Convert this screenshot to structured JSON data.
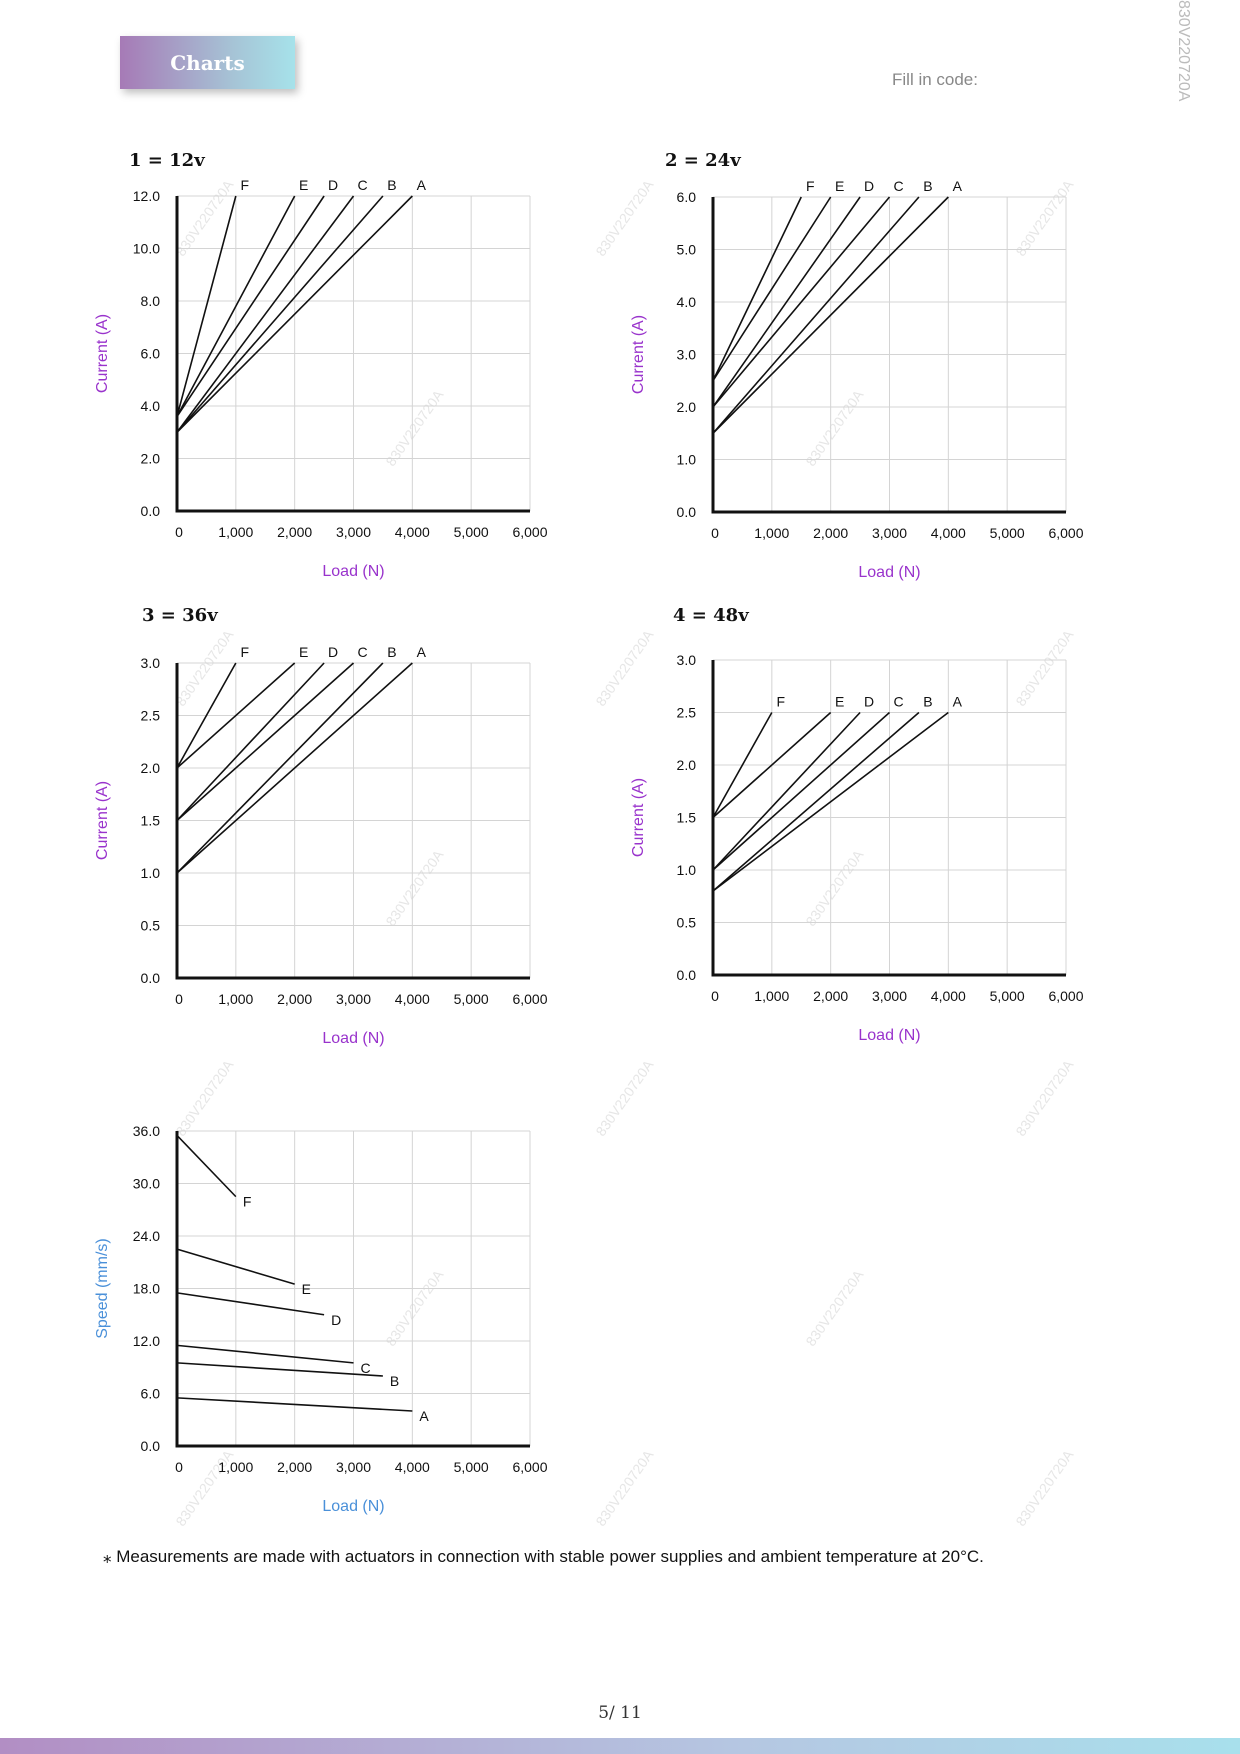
{
  "header": {
    "badge": "Charts",
    "fill_in_code": "Fill in code:",
    "side_code": "830V220720A"
  },
  "watermark_text": "830V220720A",
  "footnote": "⁎ Measurements are made with actuators in connection with stable power supplies and ambient temperature at 20°C.",
  "page_number": "5∕ 11",
  "colors": {
    "current_axis_label": "#9933cc",
    "speed_axis_label": "#4a90d9",
    "line": "#111111",
    "grid": "#d4d4d4"
  },
  "chart_data": [
    {
      "type": "line",
      "title": "1 = 12v",
      "xlabel": "Load (N)",
      "ylabel": "Current (A)",
      "xlim": [
        0,
        6000
      ],
      "ylim": [
        0,
        12
      ],
      "x_ticks": [
        "0",
        "1,000",
        "2,000",
        "3,000",
        "4,000",
        "5,000",
        "6,000"
      ],
      "y_ticks": [
        "0.0",
        "2.0",
        "4.0",
        "6.0",
        "8.0",
        "10.0",
        "12.0"
      ],
      "grid": true,
      "series": [
        {
          "name": "F",
          "x": [
            0,
            1000
          ],
          "y": [
            3.6,
            12
          ]
        },
        {
          "name": "E",
          "x": [
            0,
            2000
          ],
          "y": [
            3.6,
            12
          ]
        },
        {
          "name": "D",
          "x": [
            0,
            2500
          ],
          "y": [
            3.6,
            12
          ]
        },
        {
          "name": "C",
          "x": [
            0,
            3000
          ],
          "y": [
            3.0,
            12
          ]
        },
        {
          "name": "B",
          "x": [
            0,
            3500
          ],
          "y": [
            3.0,
            12
          ]
        },
        {
          "name": "A",
          "x": [
            0,
            4000
          ],
          "y": [
            3.0,
            12
          ]
        }
      ]
    },
    {
      "type": "line",
      "title": "2 = 24v",
      "xlabel": "Load (N)",
      "ylabel": "Current (A)",
      "xlim": [
        0,
        6000
      ],
      "ylim": [
        0,
        6
      ],
      "x_ticks": [
        "0",
        "1,000",
        "2,000",
        "3,000",
        "4,000",
        "5,000",
        "6,000"
      ],
      "y_ticks": [
        "0.0",
        "1.0",
        "2.0",
        "3.0",
        "4.0",
        "5.0",
        "6.0"
      ],
      "grid": true,
      "series": [
        {
          "name": "F",
          "x": [
            0,
            1500
          ],
          "y": [
            2.5,
            6
          ]
        },
        {
          "name": "E",
          "x": [
            0,
            2000
          ],
          "y": [
            2.5,
            6
          ]
        },
        {
          "name": "D",
          "x": [
            0,
            2500
          ],
          "y": [
            2.0,
            6
          ]
        },
        {
          "name": "C",
          "x": [
            0,
            3000
          ],
          "y": [
            2.0,
            6
          ]
        },
        {
          "name": "B",
          "x": [
            0,
            3500
          ],
          "y": [
            1.5,
            6
          ]
        },
        {
          "name": "A",
          "x": [
            0,
            4000
          ],
          "y": [
            1.5,
            6
          ]
        }
      ]
    },
    {
      "type": "line",
      "title": "3 = 36v",
      "xlabel": "Load (N)",
      "ylabel": "Current (A)",
      "xlim": [
        0,
        6000
      ],
      "ylim": [
        0,
        3
      ],
      "x_ticks": [
        "0",
        "1,000",
        "2,000",
        "3,000",
        "4,000",
        "5,000",
        "6,000"
      ],
      "y_ticks": [
        "0.0",
        "0.5",
        "1.0",
        "1.5",
        "2.0",
        "2.5",
        "3.0"
      ],
      "grid": true,
      "series": [
        {
          "name": "F",
          "x": [
            0,
            1000
          ],
          "y": [
            2.0,
            3
          ]
        },
        {
          "name": "E",
          "x": [
            0,
            2000
          ],
          "y": [
            2.0,
            3
          ]
        },
        {
          "name": "D",
          "x": [
            0,
            2500
          ],
          "y": [
            1.5,
            3
          ]
        },
        {
          "name": "C",
          "x": [
            0,
            3000
          ],
          "y": [
            1.5,
            3
          ]
        },
        {
          "name": "B",
          "x": [
            0,
            3500
          ],
          "y": [
            1.0,
            3
          ]
        },
        {
          "name": "A",
          "x": [
            0,
            4000
          ],
          "y": [
            1.0,
            3
          ]
        }
      ]
    },
    {
      "type": "line",
      "title": "4 = 48v",
      "xlabel": "Load (N)",
      "ylabel": "Current (A)",
      "xlim": [
        0,
        6000
      ],
      "ylim": [
        0,
        3
      ],
      "x_ticks": [
        "0",
        "1,000",
        "2,000",
        "3,000",
        "4,000",
        "5,000",
        "6,000"
      ],
      "y_ticks": [
        "0.0",
        "0.5",
        "1.0",
        "1.5",
        "2.0",
        "2.5",
        "3.0"
      ],
      "grid": true,
      "series": [
        {
          "name": "F",
          "x": [
            0,
            1000
          ],
          "y": [
            1.5,
            2.5
          ]
        },
        {
          "name": "E",
          "x": [
            0,
            2000
          ],
          "y": [
            1.5,
            2.5
          ]
        },
        {
          "name": "D",
          "x": [
            0,
            2500
          ],
          "y": [
            1.0,
            2.5
          ]
        },
        {
          "name": "C",
          "x": [
            0,
            3000
          ],
          "y": [
            1.0,
            2.5
          ]
        },
        {
          "name": "B",
          "x": [
            0,
            3500
          ],
          "y": [
            0.8,
            2.5
          ]
        },
        {
          "name": "A",
          "x": [
            0,
            4000
          ],
          "y": [
            0.8,
            2.5
          ]
        }
      ]
    },
    {
      "type": "line",
      "title": "",
      "xlabel": "Load (N)",
      "ylabel": "Speed (mm/s)",
      "xlim": [
        0,
        6000
      ],
      "ylim": [
        0,
        36
      ],
      "x_ticks": [
        "0",
        "1,000",
        "2,000",
        "3,000",
        "4,000",
        "5,000",
        "6,000"
      ],
      "y_ticks": [
        "0.0",
        "6.0",
        "12.0",
        "18.0",
        "24.0",
        "30.0",
        "36.0"
      ],
      "grid": true,
      "series": [
        {
          "name": "F",
          "x": [
            0,
            1000
          ],
          "y": [
            35.5,
            28.5
          ]
        },
        {
          "name": "E",
          "x": [
            0,
            2000
          ],
          "y": [
            22.5,
            18.5
          ]
        },
        {
          "name": "D",
          "x": [
            0,
            2500
          ],
          "y": [
            17.5,
            15.0
          ]
        },
        {
          "name": "C",
          "x": [
            0,
            3000
          ],
          "y": [
            11.5,
            9.5
          ]
        },
        {
          "name": "B",
          "x": [
            0,
            3500
          ],
          "y": [
            9.5,
            8.0
          ]
        },
        {
          "name": "A",
          "x": [
            0,
            4000
          ],
          "y": [
            5.5,
            4.0
          ]
        }
      ]
    }
  ]
}
